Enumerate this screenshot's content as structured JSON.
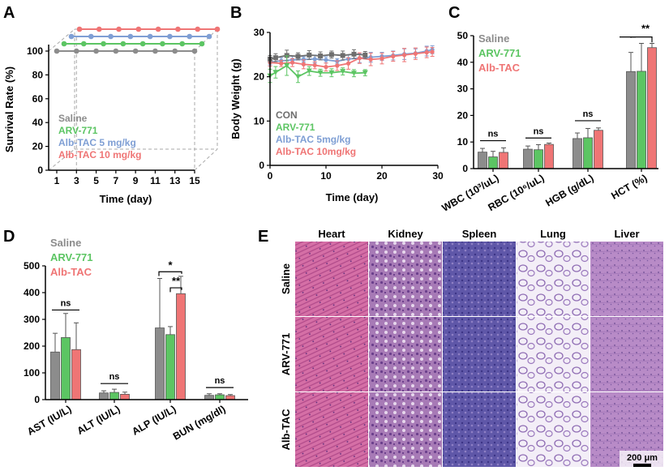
{
  "colors": {
    "saline": "#8c8c8c",
    "arv": "#5cc563",
    "alb5": "#7f9fd4",
    "alb10": "#ef7575",
    "con": "#6e6e6e"
  },
  "panel_letters": [
    "A",
    "B",
    "C",
    "D",
    "E"
  ],
  "chart_data": [
    {
      "panel": "A",
      "type": "line",
      "xlabel": "Time (day)",
      "ylabel": "Survival Rate (%)",
      "xticks": [
        "1",
        "3",
        "5",
        "7",
        "9",
        "11",
        "13",
        "15"
      ],
      "yticks": [
        "0",
        "20",
        "40",
        "60",
        "80",
        "100"
      ],
      "ylim": [
        0,
        100
      ],
      "x": [
        1,
        3,
        5,
        7,
        9,
        11,
        13,
        15
      ],
      "series": [
        {
          "name": "Saline",
          "values": [
            100,
            100,
            100,
            100,
            100,
            100,
            100,
            100
          ]
        },
        {
          "name": "ARV-771",
          "values": [
            100,
            100,
            100,
            100,
            100,
            100,
            100,
            100
          ]
        },
        {
          "name": "Alb-TAC 5 mg/kg",
          "values": [
            100,
            100,
            100,
            100,
            100,
            100,
            100,
            100
          ]
        },
        {
          "name": "Alb-TAC 10 mg/kg",
          "values": [
            100,
            100,
            100,
            100,
            100,
            100,
            100,
            100
          ]
        }
      ]
    },
    {
      "panel": "B",
      "type": "line",
      "xlabel": "Time (day)",
      "ylabel": "Body Weight (g)",
      "xticks": [
        "0",
        "10",
        "20",
        "30"
      ],
      "yticks": [
        "0",
        "10",
        "20",
        "30"
      ],
      "xlim": [
        0,
        30
      ],
      "ylim": [
        0,
        30
      ],
      "series": [
        {
          "name": "CON",
          "x": [
            0,
            1,
            3,
            5,
            7,
            9,
            11,
            13,
            15,
            17
          ],
          "values": [
            24,
            24.3,
            24.8,
            24.6,
            24.9,
            24.7,
            25,
            24.8,
            25.1,
            24.9
          ],
          "err": [
            0.8,
            0.9,
            1.2,
            0.8,
            1,
            0.9,
            0.8,
            1,
            1,
            0.8
          ]
        },
        {
          "name": "ARV-771",
          "x": [
            0,
            1,
            3,
            5,
            7,
            9,
            11,
            13,
            15,
            17
          ],
          "values": [
            20.2,
            21,
            22.5,
            20,
            21.3,
            20.9,
            20.9,
            21.2,
            20.8,
            20.9
          ],
          "err": [
            1.5,
            1.3,
            2.2,
            1.3,
            1,
            0.8,
            0.9,
            0.8,
            0.8,
            0.7
          ]
        },
        {
          "name": "Alb-TAC 5mg/kg",
          "x": [
            0,
            2,
            4,
            6,
            8,
            10,
            12,
            14,
            16,
            18,
            20,
            22,
            24,
            26,
            28,
            29
          ],
          "values": [
            23.3,
            23.6,
            23.8,
            23.9,
            24,
            23.8,
            23.5,
            24,
            24.2,
            24.4,
            24.6,
            24.8,
            25.1,
            25.3,
            25.8,
            26.1
          ],
          "err": [
            0.6,
            0.7,
            0.8,
            0.6,
            0.9,
            0.7,
            0.6,
            0.9,
            1,
            1.1,
            0.9,
            1,
            1.2,
            1,
            1.1,
            0.9
          ]
        },
        {
          "name": "Alb-TAC 10mg/kg",
          "x": [
            0,
            2,
            4,
            6,
            8,
            10,
            12,
            14,
            16,
            18,
            20,
            22,
            24,
            26,
            28,
            29
          ],
          "values": [
            23.2,
            23,
            23.2,
            22.8,
            22.6,
            22.2,
            22.5,
            23,
            24.2,
            23.9,
            24.1,
            24.6,
            24.9,
            25.2,
            25.5,
            25.6
          ],
          "err": [
            0.8,
            0.7,
            0.9,
            1,
            0.8,
            0.9,
            1.1,
            1.3,
            1.2,
            1.4,
            1.2,
            1.1,
            1.5,
            1.3,
            1.2,
            1
          ]
        }
      ]
    },
    {
      "panel": "C",
      "type": "bar",
      "categories": [
        "WBC (10³/uL)",
        "RBC (10⁶/uL)",
        "HGB (g/dL)",
        "HCT (%)"
      ],
      "yticks": [
        "0",
        "10",
        "20",
        "30",
        "40",
        "50"
      ],
      "ylim": [
        0,
        50
      ],
      "series": [
        {
          "name": "Saline",
          "values": [
            6.2,
            7.3,
            11.3,
            36.5
          ],
          "err": [
            1.4,
            1.2,
            2.1,
            7.2
          ]
        },
        {
          "name": "ARV-771",
          "values": [
            4.4,
            7.1,
            11.6,
            36.6
          ],
          "err": [
            2.1,
            1.9,
            3.5,
            10.5
          ]
        },
        {
          "name": "Alb-TAC",
          "values": [
            6.1,
            9.1,
            14.4,
            45.5
          ],
          "err": [
            1.7,
            0.5,
            0.9,
            1.6
          ]
        }
      ],
      "annotations": [
        "ns",
        "ns",
        "ns",
        "**"
      ]
    },
    {
      "panel": "D",
      "type": "bar",
      "categories": [
        "AST (IU/L)",
        "ALT (IU/L)",
        "ALP (IU/L)",
        "BUN (mg/dl)"
      ],
      "yticks": [
        "0",
        "100",
        "200",
        "300",
        "400",
        "500"
      ],
      "ylim": [
        0,
        500
      ],
      "series": [
        {
          "name": "Saline",
          "values": [
            178,
            25,
            268,
            16
          ],
          "err": [
            70,
            8,
            185,
            6
          ]
        },
        {
          "name": "ARV-771",
          "values": [
            232,
            27,
            243,
            18
          ],
          "err": [
            90,
            12,
            30,
            4
          ]
        },
        {
          "name": "Alb-TAC",
          "values": [
            187,
            20,
            396,
            15
          ],
          "err": [
            100,
            8,
            65,
            4
          ]
        }
      ],
      "annotations": [
        "ns",
        "ns",
        "*",
        "**",
        "ns"
      ]
    }
  ],
  "panelE": {
    "columns": [
      "Heart",
      "Kidney",
      "Spleen",
      "Lung",
      "Liver"
    ],
    "rows": [
      "Saline",
      "ARV-771",
      "Alb-TAC"
    ],
    "scale_bar": "200 μm"
  }
}
